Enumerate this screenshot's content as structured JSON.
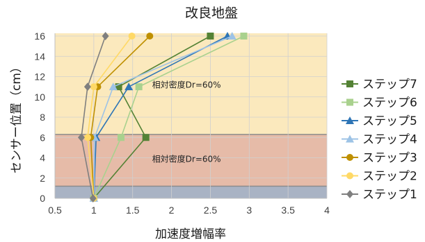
{
  "chart_data": {
    "type": "line",
    "title": "改良地盤",
    "xlabel": "加速度増幅率",
    "ylabel": "センサー位置（cm）",
    "xlim": [
      0.5,
      4
    ],
    "ylim": [
      0,
      16
    ],
    "xticks": [
      "0.5",
      "1",
      "1.5",
      "2",
      "2.5",
      "3",
      "3.5",
      "4"
    ],
    "yticks": [
      "0",
      "2",
      "4",
      "6",
      "8",
      "10",
      "12",
      "14",
      "16"
    ],
    "grid": true,
    "legend_position": "right",
    "layers": [
      {
        "y_from": 0,
        "y_to": 1.2,
        "color": "#a9b3c4"
      },
      {
        "y_from": 1.2,
        "y_to": 6.3,
        "color": "#e6bba8"
      },
      {
        "y_from": 6.3,
        "y_to": 16.4,
        "color": "#fbe9bd"
      }
    ],
    "annotations": [
      {
        "text": "相対密度Dr=60%",
        "x": 1.75,
        "y": 10.9
      },
      {
        "text": "相対密度Dr=60%",
        "x": 1.75,
        "y": 3.6
      }
    ],
    "series": [
      {
        "name": "ステップ7",
        "color": "#548235",
        "marker": "square",
        "points": [
          [
            1.0,
            0
          ],
          [
            1.67,
            6
          ],
          [
            1.32,
            11
          ],
          [
            2.5,
            16
          ]
        ]
      },
      {
        "name": "ステップ6",
        "color": "#a9d18e",
        "marker": "square",
        "points": [
          [
            1.0,
            0
          ],
          [
            1.35,
            6
          ],
          [
            1.58,
            11
          ],
          [
            2.93,
            16
          ]
        ]
      },
      {
        "name": "ステップ5",
        "color": "#2e75b6",
        "marker": "triangle",
        "points": [
          [
            1.0,
            0
          ],
          [
            1.03,
            6
          ],
          [
            1.45,
            11
          ],
          [
            2.72,
            16
          ]
        ]
      },
      {
        "name": "ステップ4",
        "color": "#9dc3e6",
        "marker": "triangle",
        "points": [
          [
            1.0,
            0
          ],
          [
            1.01,
            6
          ],
          [
            1.25,
            11
          ],
          [
            2.78,
            16
          ]
        ]
      },
      {
        "name": "ステップ3",
        "color": "#bf9000",
        "marker": "circle",
        "points": [
          [
            1.0,
            0
          ],
          [
            0.96,
            6
          ],
          [
            1.05,
            11
          ],
          [
            1.72,
            16
          ]
        ]
      },
      {
        "name": "ステップ2",
        "color": "#ffd966",
        "marker": "circle",
        "points": [
          [
            1.0,
            0
          ],
          [
            0.92,
            6
          ],
          [
            1.0,
            11
          ],
          [
            1.49,
            16
          ]
        ]
      },
      {
        "name": "ステップ1",
        "color": "#7f7f7f",
        "marker": "diamond",
        "points": [
          [
            0.99,
            0
          ],
          [
            0.84,
            6
          ],
          [
            0.92,
            11
          ],
          [
            1.15,
            16
          ]
        ]
      }
    ]
  }
}
